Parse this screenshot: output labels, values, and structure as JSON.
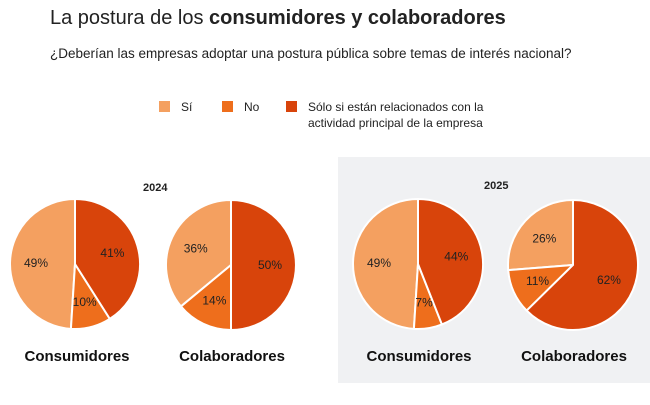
{
  "header": {
    "title_regular": "La postura de los ",
    "title_bold": "consumidores y colaboradores",
    "subtitle": "¿Deberían las empresas adoptar una postura pública sobre temas de interés nacional?"
  },
  "legend": [
    {
      "label": "Sí",
      "color": "#f4a060"
    },
    {
      "label": "No",
      "color": "#ee6e1c"
    },
    {
      "label": "Sólo si están relacionados con la actividad principal de la empresa",
      "color": "#d8440b"
    }
  ],
  "chart_data": {
    "type": "pie",
    "title": "La postura de los consumidores y colaboradores",
    "subtitle": "¿Deberían las empresas adoptar una postura pública sobre temas de interés nacional?",
    "categories": [
      "Sí",
      "No",
      "Sólo si están relacionados con la actividad principal de la empresa"
    ],
    "legend_position": "top",
    "groups": [
      {
        "year": "2024",
        "charts": [
          {
            "name": "Consumidores",
            "values": [
              49,
              10,
              41
            ],
            "labels": [
              "49%",
              "10%",
              "41%"
            ]
          },
          {
            "name": "Colaboradores",
            "values": [
              36,
              14,
              50
            ],
            "labels": [
              "36%",
              "14%",
              "50%"
            ]
          }
        ]
      },
      {
        "year": "2025",
        "charts": [
          {
            "name": "Consumidores",
            "values": [
              49,
              7,
              44
            ],
            "labels": [
              "49%",
              "7%",
              "44%"
            ]
          },
          {
            "name": "Colaboradores",
            "values": [
              26,
              11,
              62
            ],
            "labels": [
              "26%",
              "11%",
              "62%"
            ]
          }
        ]
      }
    ]
  }
}
